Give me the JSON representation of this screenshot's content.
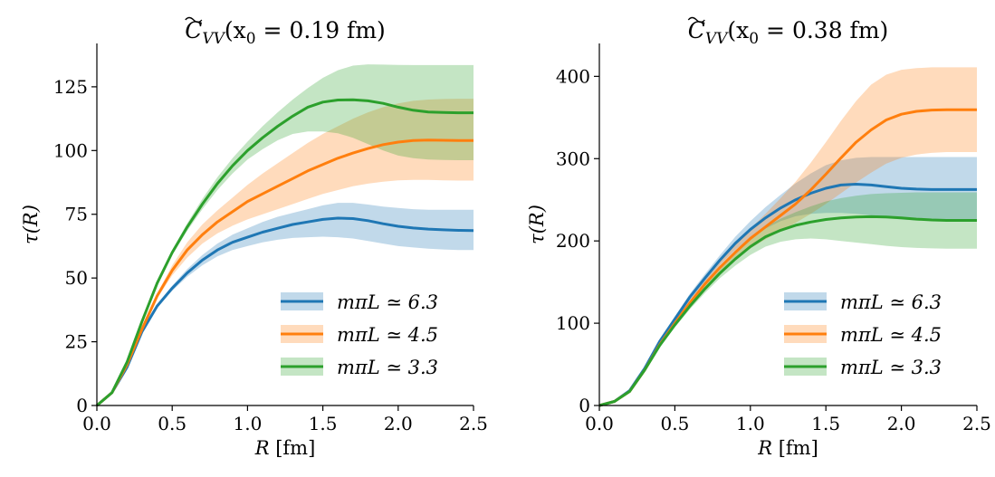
{
  "chart_data": [
    {
      "type": "line",
      "title": "C̃VV(x0 = 0.19 fm)",
      "title_parts": {
        "c": "C",
        "sub": "VV",
        "arg": "(x",
        "arg_sub": "0",
        "rest": " = 0.19 fm)"
      },
      "xlabel": "R [fm]",
      "ylabel": "τ(R)",
      "xlim": [
        0,
        2.5
      ],
      "ylim": [
        0,
        142
      ],
      "xticks": [
        0.0,
        0.5,
        1.0,
        1.5,
        2.0,
        2.5
      ],
      "xtick_labels": [
        "0.0",
        "0.5",
        "1.0",
        "1.5",
        "2.0",
        "2.5"
      ],
      "yticks": [
        0,
        25,
        50,
        75,
        100,
        125
      ],
      "ytick_labels": [
        "0",
        "25",
        "50",
        "75",
        "100",
        "125"
      ],
      "legend_position": "lower-right",
      "series": [
        {
          "name": "mπL ≃ 6.3",
          "color": "#1f77b4",
          "x": [
            0,
            0.1,
            0.2,
            0.3,
            0.4,
            0.5,
            0.6,
            0.7,
            0.8,
            0.9,
            1.0,
            1.1,
            1.2,
            1.3,
            1.4,
            1.5,
            1.6,
            1.7,
            1.8,
            1.9,
            2.0,
            2.1,
            2.2,
            2.3,
            2.4,
            2.5
          ],
          "y": [
            0,
            5,
            15,
            29,
            39,
            46,
            52,
            57,
            61,
            64,
            66,
            68,
            69.5,
            71,
            72,
            73,
            73.5,
            73.3,
            72.5,
            71.3,
            70.3,
            69.6,
            69.2,
            68.9,
            68.7,
            68.6
          ],
          "low": [
            0,
            5,
            15,
            29,
            38.5,
            45,
            50.5,
            55,
            58.5,
            61,
            62.5,
            64,
            65,
            65.7,
            66,
            66.2,
            66,
            65.5,
            64.5,
            63.5,
            62.5,
            62,
            61.5,
            61.2,
            61,
            61
          ],
          "high": [
            0,
            5,
            15,
            29,
            39.5,
            47,
            53.5,
            59,
            63.5,
            67,
            69.5,
            72,
            74,
            75.5,
            77,
            78.5,
            79.5,
            79.5,
            78.8,
            78,
            77.5,
            77,
            76.8,
            76.8,
            76.8,
            76.8
          ]
        },
        {
          "name": "mπL ≃ 4.5",
          "color": "#ff7f0e",
          "x": [
            0,
            0.1,
            0.2,
            0.3,
            0.4,
            0.5,
            0.6,
            0.7,
            0.8,
            0.9,
            1.0,
            1.1,
            1.2,
            1.3,
            1.4,
            1.5,
            1.6,
            1.7,
            1.8,
            1.9,
            2.0,
            2.1,
            2.2,
            2.3,
            2.4,
            2.5
          ],
          "y": [
            0,
            5,
            16,
            30,
            43,
            53,
            61,
            67,
            72,
            76,
            80,
            83,
            86,
            89,
            92,
            94.5,
            97,
            99,
            100.8,
            102.3,
            103.3,
            103.9,
            104.1,
            104,
            103.9,
            103.9
          ],
          "low": [
            0,
            5,
            16,
            30,
            42,
            51,
            58,
            63.5,
            67.5,
            70.5,
            73,
            75,
            77,
            79,
            81,
            83,
            84.5,
            86,
            87,
            87.8,
            88.3,
            88.5,
            88.5,
            88.3,
            88.2,
            88.2
          ],
          "high": [
            0,
            5,
            16,
            30,
            44,
            55,
            64,
            71,
            76.5,
            81.5,
            86.5,
            91,
            95,
            99,
            103,
            106.5,
            109.5,
            112.5,
            115,
            117,
            118.5,
            119.5,
            120,
            120.2,
            120.3,
            120.3
          ]
        },
        {
          "name": "mπL ≃ 3.3",
          "color": "#2ca02c",
          "x": [
            0,
            0.1,
            0.2,
            0.3,
            0.4,
            0.5,
            0.6,
            0.7,
            0.8,
            0.9,
            1.0,
            1.1,
            1.2,
            1.3,
            1.4,
            1.5,
            1.6,
            1.7,
            1.8,
            1.9,
            2.0,
            2.1,
            2.2,
            2.3,
            2.4,
            2.5
          ],
          "y": [
            0,
            5,
            17,
            33,
            48,
            60,
            70,
            79,
            87,
            94,
            100,
            105,
            109.5,
            113.5,
            117,
            119,
            119.8,
            119.9,
            119.5,
            118.5,
            117,
            115.8,
            115.1,
            114.9,
            114.8,
            114.8
          ],
          "low": [
            0,
            5,
            17,
            33,
            47.5,
            59,
            68.5,
            77,
            84.5,
            91,
            96.5,
            100.5,
            104,
            106.5,
            107.5,
            107.5,
            106.8,
            105,
            102.5,
            100,
            98,
            97,
            96.5,
            96.3,
            96.2,
            96.2
          ],
          "high": [
            0,
            5,
            17,
            33,
            48.5,
            61,
            71.5,
            81,
            89.5,
            97,
            103.5,
            109.5,
            115,
            120,
            124.5,
            128.5,
            131.5,
            133.3,
            133.8,
            133.7,
            133.6,
            133.5,
            133.5,
            133.5,
            133.5,
            133.5
          ]
        }
      ]
    },
    {
      "type": "line",
      "title": "C̃VV(x0 = 0.38 fm)",
      "title_parts": {
        "c": "C",
        "sub": "VV",
        "arg": "(x",
        "arg_sub": "0",
        "rest": " = 0.38 fm)"
      },
      "xlabel": "R [fm]",
      "ylabel": "τ(R)",
      "xlim": [
        0,
        2.5
      ],
      "ylim": [
        0,
        440
      ],
      "xticks": [
        0.0,
        0.5,
        1.0,
        1.5,
        2.0,
        2.5
      ],
      "xtick_labels": [
        "0.0",
        "0.5",
        "1.0",
        "1.5",
        "2.0",
        "2.5"
      ],
      "yticks": [
        0,
        100,
        200,
        300,
        400
      ],
      "ytick_labels": [
        "0",
        "100",
        "200",
        "300",
        "400"
      ],
      "legend_position": "lower-right",
      "series": [
        {
          "name": "mπL ≃ 6.3",
          "color": "#1f77b4",
          "x": [
            0,
            0.1,
            0.2,
            0.3,
            0.4,
            0.5,
            0.6,
            0.7,
            0.8,
            0.9,
            1.0,
            1.1,
            1.2,
            1.3,
            1.4,
            1.5,
            1.6,
            1.7,
            1.8,
            1.9,
            2.0,
            2.1,
            2.2,
            2.3,
            2.4,
            2.5
          ],
          "y": [
            0,
            5,
            18,
            45,
            78,
            105,
            132,
            155,
            177,
            197,
            214,
            228,
            240,
            250,
            258,
            264,
            268,
            269,
            268,
            266,
            264,
            263,
            262.5,
            262.5,
            262.5,
            262.5
          ],
          "low": [
            0,
            5,
            18,
            44,
            76,
            102,
            128,
            150,
            171,
            189,
            204,
            215,
            224,
            230,
            233,
            234,
            234,
            233,
            231,
            228,
            226,
            225,
            224.5,
            224.5,
            224.5,
            224.5
          ],
          "high": [
            0,
            5,
            18,
            46,
            80,
            108,
            136,
            160,
            183,
            205,
            224,
            241,
            256,
            270,
            282,
            292,
            298,
            301,
            302,
            302,
            302,
            302,
            302,
            302,
            302,
            302
          ]
        },
        {
          "name": "mπL ≃ 4.5",
          "color": "#ff7f0e",
          "x": [
            0,
            0.1,
            0.2,
            0.3,
            0.4,
            0.5,
            0.6,
            0.7,
            0.8,
            0.9,
            1.0,
            1.1,
            1.2,
            1.3,
            1.4,
            1.5,
            1.6,
            1.7,
            1.8,
            1.9,
            2.0,
            2.1,
            2.2,
            2.3,
            2.4,
            2.5
          ],
          "y": [
            0,
            5,
            17,
            43,
            74,
            100,
            125,
            148,
            168,
            186,
            203,
            217,
            231,
            245,
            262,
            281,
            301,
            320,
            335,
            347,
            354,
            357.5,
            359,
            359.5,
            359.5,
            359.5
          ],
          "low": [
            0,
            5,
            17,
            42,
            72,
            97,
            121,
            142,
            161,
            177,
            191,
            202,
            212,
            222,
            233,
            245,
            258,
            271,
            283,
            294,
            301,
            305,
            307,
            308,
            308,
            308
          ],
          "high": [
            0,
            5,
            17,
            44,
            76,
            103,
            129,
            154,
            175,
            195,
            215,
            233,
            252,
            272,
            295,
            320,
            346,
            370,
            390,
            402,
            408,
            410,
            411,
            411,
            411,
            411
          ]
        },
        {
          "name": "mπL ≃ 3.3",
          "color": "#2ca02c",
          "x": [
            0,
            0.1,
            0.2,
            0.3,
            0.4,
            0.5,
            0.6,
            0.7,
            0.8,
            0.9,
            1.0,
            1.1,
            1.2,
            1.3,
            1.4,
            1.5,
            1.6,
            1.7,
            1.8,
            1.9,
            2.0,
            2.1,
            2.2,
            2.3,
            2.4,
            2.5
          ],
          "y": [
            0,
            5,
            17,
            43,
            73,
            98,
            121,
            142,
            161,
            178,
            193,
            205,
            213,
            219,
            223,
            226,
            228,
            229,
            229.5,
            229,
            228,
            226.5,
            225.5,
            225,
            225,
            225
          ],
          "low": [
            0,
            5,
            17,
            42,
            71,
            95,
            117,
            137,
            155,
            170,
            183,
            193,
            199,
            202,
            203,
            202,
            200,
            198,
            196,
            194,
            192.5,
            191.5,
            191,
            190.5,
            190.5,
            190.5
          ],
          "high": [
            0,
            5,
            17,
            44,
            75,
            101,
            125,
            147,
            167,
            186,
            203,
            217,
            227,
            235,
            242,
            248,
            252,
            255,
            257,
            258,
            258.5,
            259,
            259,
            259,
            259,
            259
          ]
        }
      ]
    }
  ]
}
